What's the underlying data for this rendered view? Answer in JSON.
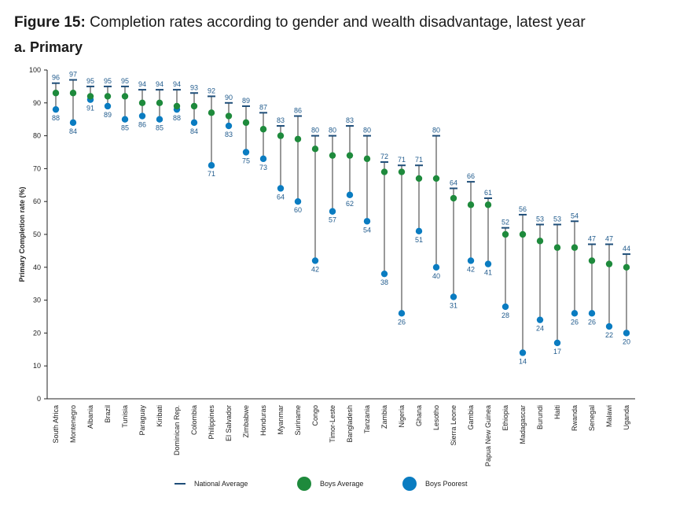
{
  "figure": {
    "label": "Figure 15:",
    "title": " Completion rates according to gender and wealth disadvantage, latest year",
    "subtitle": "a. Primary"
  },
  "colors": {
    "national": "#1f4e79",
    "boys_average": "#1e8a3c",
    "boys_poorest": "#0a7cc1",
    "axis": "#222222",
    "connector": "#333333",
    "value_label": "#1f5a8c"
  },
  "chart_data": {
    "type": "scatter",
    "ylabel": "Primary Completion rate (%)",
    "ylim": [
      0,
      100
    ],
    "yticks": [
      0,
      10,
      20,
      30,
      40,
      50,
      60,
      70,
      80,
      90,
      100
    ],
    "grid": false,
    "legend_position": "bottom",
    "legend": [
      "National Average",
      "Boys Average",
      "Boys Poorest"
    ],
    "categories": [
      "South Africa",
      "Montenegro",
      "Albania",
      "Brazil",
      "Tunisia",
      "Paraguay",
      "Kiribati",
      "Dominican Rep.",
      "Colombia",
      "Philippines",
      "El Salvador",
      "Zimbabwe",
      "Honduras",
      "Myanmar",
      "Suriname",
      "Congo",
      "Timor-Leste",
      "Bangladesh",
      "Tanzania",
      "Zambia",
      "Nigeria",
      "Ghana",
      "Lesotho",
      "Sierra Leone",
      "Gambia",
      "Papua New Guinea",
      "Ethiopia",
      "Madagascar",
      "Burundi",
      "Haiti",
      "Rwanda",
      "Senegal",
      "Malawi",
      "Uganda"
    ],
    "series": [
      {
        "name": "National Average",
        "marker": "dash",
        "values": [
          96,
          97,
          95,
          95,
          95,
          94,
          94,
          94,
          93,
          92,
          90,
          89,
          87,
          83,
          86,
          80,
          80,
          83,
          80,
          72,
          71,
          71,
          80,
          64,
          66,
          61,
          52,
          56,
          53,
          53,
          54,
          47,
          47,
          44
        ]
      },
      {
        "name": "Boys Average",
        "marker": "circle",
        "values": [
          93,
          93,
          92,
          92,
          92,
          90,
          90,
          89,
          89,
          87,
          86,
          84,
          82,
          80,
          79,
          76,
          74,
          74,
          73,
          69,
          69,
          67,
          67,
          61,
          59,
          59,
          50,
          50,
          48,
          46,
          46,
          42,
          41,
          40
        ]
      },
      {
        "name": "Boys Poorest",
        "marker": "circle",
        "values": [
          88,
          84,
          91,
          89,
          85,
          86,
          85,
          88,
          84,
          71,
          83,
          75,
          73,
          64,
          60,
          42,
          57,
          62,
          54,
          38,
          26,
          51,
          40,
          31,
          42,
          41,
          28,
          14,
          24,
          17,
          26,
          26,
          22,
          20
        ]
      }
    ]
  }
}
